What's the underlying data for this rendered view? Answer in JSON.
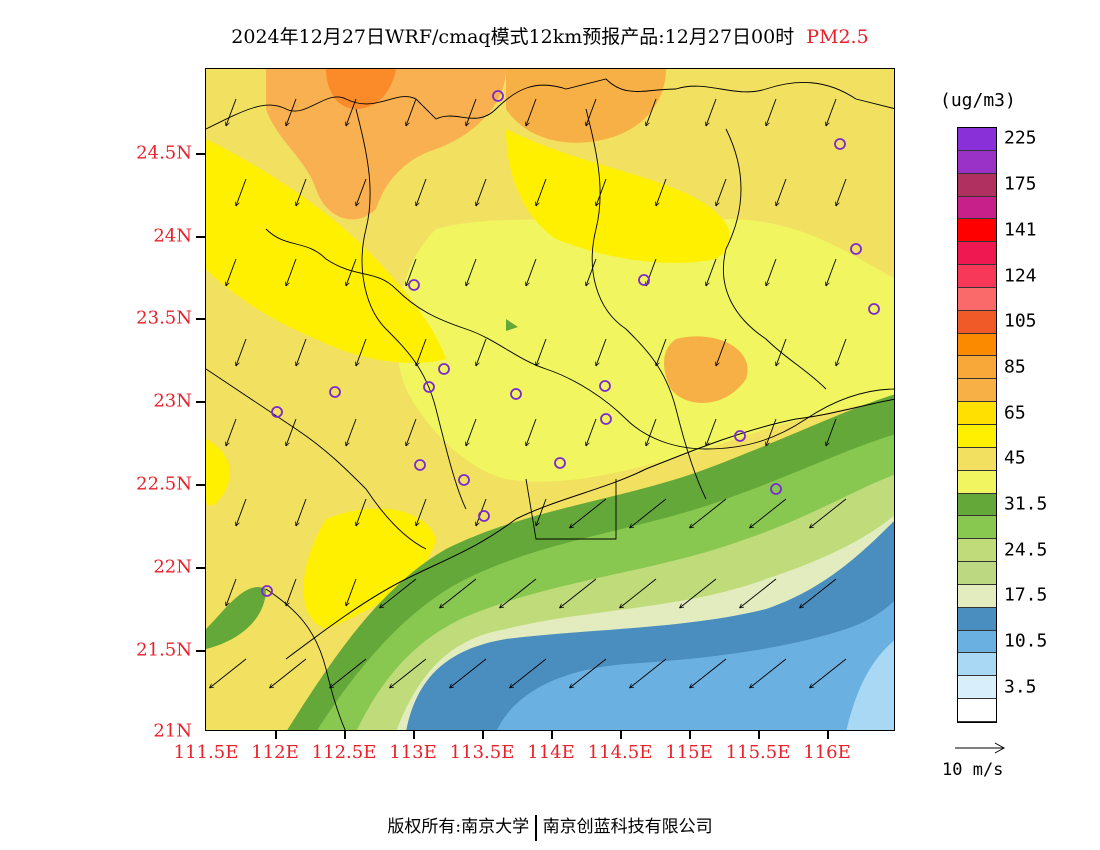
{
  "title": {
    "main": "2024年12月27日WRF/cmaq模式12km预报产品:12月27日00时",
    "pollutant": "PM2.5"
  },
  "axes": {
    "lat_labels": [
      "24.5N",
      "24N",
      "23.5N",
      "23N",
      "22.5N",
      "22N",
      "21.5N",
      "21N"
    ],
    "lon_labels": [
      "111.5E",
      "112E",
      "112.5E",
      "113E",
      "113.5E",
      "114E",
      "114.5E",
      "115E",
      "115.5E",
      "116E"
    ]
  },
  "legend": {
    "unit": "(ug/m3)",
    "levels": [
      {
        "color": "#8a30d8",
        "label": "225"
      },
      {
        "color": "#9a32c8",
        "label": ""
      },
      {
        "color": "#b03060",
        "label": "175"
      },
      {
        "color": "#c8208a",
        "label": ""
      },
      {
        "color": "#ff0000",
        "label": "141"
      },
      {
        "color": "#f01850",
        "label": ""
      },
      {
        "color": "#f83858",
        "label": "124"
      },
      {
        "color": "#fa6a6a",
        "label": ""
      },
      {
        "color": "#f05a28",
        "label": "105"
      },
      {
        "color": "#fb8a00",
        "label": ""
      },
      {
        "color": "#f8a838",
        "label": "85"
      },
      {
        "color": "#f7b045",
        "label": ""
      },
      {
        "color": "#ffe000",
        "label": "65"
      },
      {
        "color": "#fff000",
        "label": ""
      },
      {
        "color": "#f2e060",
        "label": "45"
      },
      {
        "color": "#f0f560",
        "label": ""
      },
      {
        "color": "#64a83a",
        "label": "31.5"
      },
      {
        "color": "#88c850",
        "label": ""
      },
      {
        "color": "#c0dc7a",
        "label": "24.5"
      },
      {
        "color": "#bcd880",
        "label": ""
      },
      {
        "color": "#e2ecbe",
        "label": "17.5"
      },
      {
        "color": "#4a8ec0",
        "label": ""
      },
      {
        "color": "#6ab0e0",
        "label": "10.5"
      },
      {
        "color": "#a8d8f4",
        "label": ""
      },
      {
        "color": "#d8eefa",
        "label": "3.5"
      },
      {
        "color": "#ffffff",
        "label": ""
      }
    ]
  },
  "wind": {
    "reference_label": "10 m/s"
  },
  "stations": {
    "count": 20,
    "marker_color": "#7a2ad0"
  },
  "footer": {
    "copyright": "版权所有:南京大学",
    "company": "南京创蓝科技有限公司"
  }
}
